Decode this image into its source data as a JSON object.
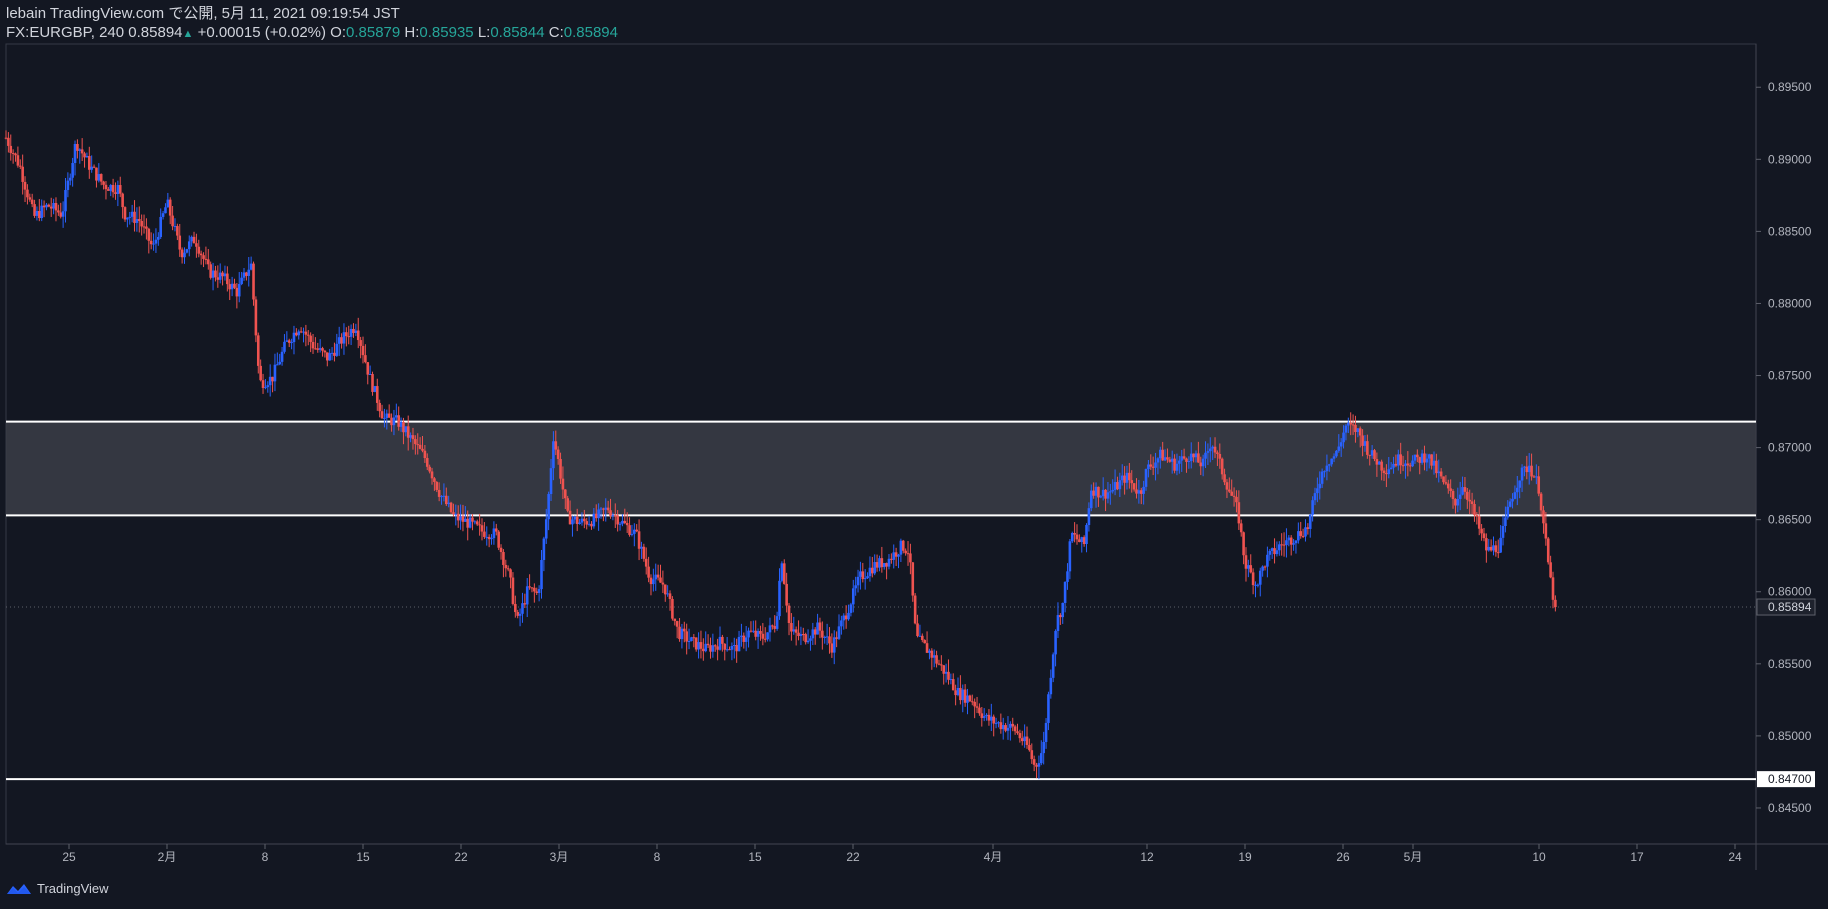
{
  "header": {
    "publish_line": "lebain TradingView.com で公開, 5月 11, 2021 09:19:54 JST",
    "symbol_line": "FX:EURGBP, 240 0.85894",
    "change": "+0.00015 (+0.02%)",
    "o_label": "O:",
    "o_value": "0.85879",
    "h_label": "H:",
    "h_value": "0.85935",
    "l_label": "L:",
    "l_value": "0.85844",
    "c_label": "C:",
    "c_value": "0.85894"
  },
  "footer": {
    "brand": "TradingView"
  },
  "colors": {
    "background": "#131722",
    "up": "#2962ff",
    "down": "#ef5350",
    "zone": "#3b3d46",
    "line": "#ffffff",
    "teal": "#26a69a"
  },
  "chart_data": {
    "type": "candlestick",
    "symbol": "FX:EURGBP",
    "interval": "240",
    "ylim": [
      0.8425,
      0.898
    ],
    "y_ticks": [
      "0.84500",
      "0.85000",
      "0.85500",
      "0.86000",
      "0.86500",
      "0.87000",
      "0.87500",
      "0.88000",
      "0.88500",
      "0.89000",
      "0.89500"
    ],
    "x_ticks": [
      {
        "label": "25",
        "day": 25
      },
      {
        "label": "2月",
        "day": 32
      },
      {
        "label": "8",
        "day": 39
      },
      {
        "label": "15",
        "day": 46
      },
      {
        "label": "22",
        "day": 53
      },
      {
        "label": "3月",
        "day": 60
      },
      {
        "label": "8",
        "day": 67
      },
      {
        "label": "15",
        "day": 74
      },
      {
        "label": "22",
        "day": 81
      },
      {
        "label": "4月",
        "day": 91
      },
      {
        "label": "12",
        "day": 102
      },
      {
        "label": "19",
        "day": 109
      },
      {
        "label": "26",
        "day": 116
      },
      {
        "label": "5月",
        "day": 121
      },
      {
        "label": "10",
        "day": 130
      },
      {
        "label": "17",
        "day": 137
      },
      {
        "label": "24",
        "day": 144
      }
    ],
    "day_range": [
      20.5,
      145.5
    ],
    "last_day": 131.2,
    "resistance_zone": [
      0.8653,
      0.8718
    ],
    "support_level": 0.847,
    "support_label": "0.84700",
    "last_price": 0.85894,
    "last_price_label": "0.85894",
    "path": [
      [
        20.5,
        0.8915
      ],
      [
        21.5,
        0.8895
      ],
      [
        22.5,
        0.886
      ],
      [
        23.5,
        0.8868
      ],
      [
        24.5,
        0.8862
      ],
      [
        25.5,
        0.8912
      ],
      [
        26.5,
        0.8895
      ],
      [
        27.5,
        0.8882
      ],
      [
        28.5,
        0.888
      ],
      [
        29,
        0.8862
      ],
      [
        30,
        0.8858
      ],
      [
        31,
        0.8838
      ],
      [
        32,
        0.887
      ],
      [
        33,
        0.8835
      ],
      [
        34,
        0.8845
      ],
      [
        35,
        0.8822
      ],
      [
        36,
        0.8818
      ],
      [
        37,
        0.8808
      ],
      [
        38,
        0.8828
      ],
      [
        38.6,
        0.8745
      ],
      [
        39.5,
        0.8748
      ],
      [
        40.5,
        0.8772
      ],
      [
        41.5,
        0.8785
      ],
      [
        42.5,
        0.877
      ],
      [
        43.5,
        0.8762
      ],
      [
        44.5,
        0.8775
      ],
      [
        45.5,
        0.8785
      ],
      [
        46.5,
        0.8748
      ],
      [
        47.5,
        0.872
      ],
      [
        48.5,
        0.8718
      ],
      [
        49.5,
        0.8705
      ],
      [
        50.5,
        0.8692
      ],
      [
        51.5,
        0.8668
      ],
      [
        52.5,
        0.8652
      ],
      [
        53.5,
        0.8648
      ],
      [
        54.5,
        0.8642
      ],
      [
        55.5,
        0.864
      ],
      [
        56.5,
        0.8608
      ],
      [
        57,
        0.8578
      ],
      [
        57.8,
        0.8602
      ],
      [
        58.5,
        0.8598
      ],
      [
        59.2,
        0.866
      ],
      [
        59.6,
        0.8708
      ],
      [
        60,
        0.8688
      ],
      [
        60.6,
        0.8652
      ],
      [
        61.5,
        0.8648
      ],
      [
        62.5,
        0.865
      ],
      [
        63.5,
        0.8658
      ],
      [
        64.5,
        0.8648
      ],
      [
        65.5,
        0.864
      ],
      [
        66.5,
        0.861
      ],
      [
        67.5,
        0.8605
      ],
      [
        68.5,
        0.8572
      ],
      [
        69.5,
        0.8565
      ],
      [
        70.5,
        0.856
      ],
      [
        71.5,
        0.8565
      ],
      [
        72.5,
        0.856
      ],
      [
        73.5,
        0.8572
      ],
      [
        74.5,
        0.8568
      ],
      [
        75.5,
        0.8578
      ],
      [
        75.9,
        0.8625
      ],
      [
        76.5,
        0.8572
      ],
      [
        77.5,
        0.8568
      ],
      [
        78.5,
        0.8575
      ],
      [
        79.5,
        0.8562
      ],
      [
        80.5,
        0.8585
      ],
      [
        81.5,
        0.861
      ],
      [
        82.5,
        0.8618
      ],
      [
        83.5,
        0.8622
      ],
      [
        84.5,
        0.8632
      ],
      [
        85,
        0.8628
      ],
      [
        85.5,
        0.8568
      ],
      [
        86.5,
        0.8558
      ],
      [
        87.5,
        0.8545
      ],
      [
        88.5,
        0.853
      ],
      [
        89.5,
        0.8525
      ],
      [
        90.5,
        0.8512
      ],
      [
        91.5,
        0.8508
      ],
      [
        92.5,
        0.8505
      ],
      [
        93.5,
        0.8492
      ],
      [
        94,
        0.8478
      ],
      [
        94.6,
        0.8492
      ],
      [
        95,
        0.8532
      ],
      [
        95.5,
        0.8578
      ],
      [
        96,
        0.8592
      ],
      [
        96.6,
        0.864
      ],
      [
        97.5,
        0.8632
      ],
      [
        98,
        0.8672
      ],
      [
        98.8,
        0.8668
      ],
      [
        99.5,
        0.867
      ],
      [
        100.5,
        0.868
      ],
      [
        101.5,
        0.8668
      ],
      [
        102,
        0.8685
      ],
      [
        103,
        0.8695
      ],
      [
        104,
        0.8688
      ],
      [
        105,
        0.8695
      ],
      [
        106,
        0.8688
      ],
      [
        106.6,
        0.8705
      ],
      [
        107.5,
        0.868
      ],
      [
        108.5,
        0.8655
      ],
      [
        109,
        0.862
      ],
      [
        109.8,
        0.8605
      ],
      [
        110.5,
        0.8622
      ],
      [
        111.5,
        0.8632
      ],
      [
        112.5,
        0.8638
      ],
      [
        113.5,
        0.8645
      ],
      [
        114.2,
        0.8675
      ],
      [
        114.8,
        0.869
      ],
      [
        115.5,
        0.8695
      ],
      [
        116.2,
        0.8715
      ],
      [
        117,
        0.8712
      ],
      [
        118,
        0.8695
      ],
      [
        119,
        0.8685
      ],
      [
        120,
        0.8692
      ],
      [
        121,
        0.869
      ],
      [
        122,
        0.8695
      ],
      [
        123,
        0.8678
      ],
      [
        124,
        0.8662
      ],
      [
        124.6,
        0.8675
      ],
      [
        125.2,
        0.8658
      ],
      [
        126.3,
        0.8628
      ],
      [
        127.2,
        0.8632
      ],
      [
        128,
        0.8665
      ],
      [
        128.6,
        0.868
      ],
      [
        129.3,
        0.8688
      ],
      [
        130,
        0.8672
      ],
      [
        130.5,
        0.8632
      ],
      [
        130.9,
        0.8602
      ],
      [
        131.2,
        0.8589
      ]
    ]
  }
}
